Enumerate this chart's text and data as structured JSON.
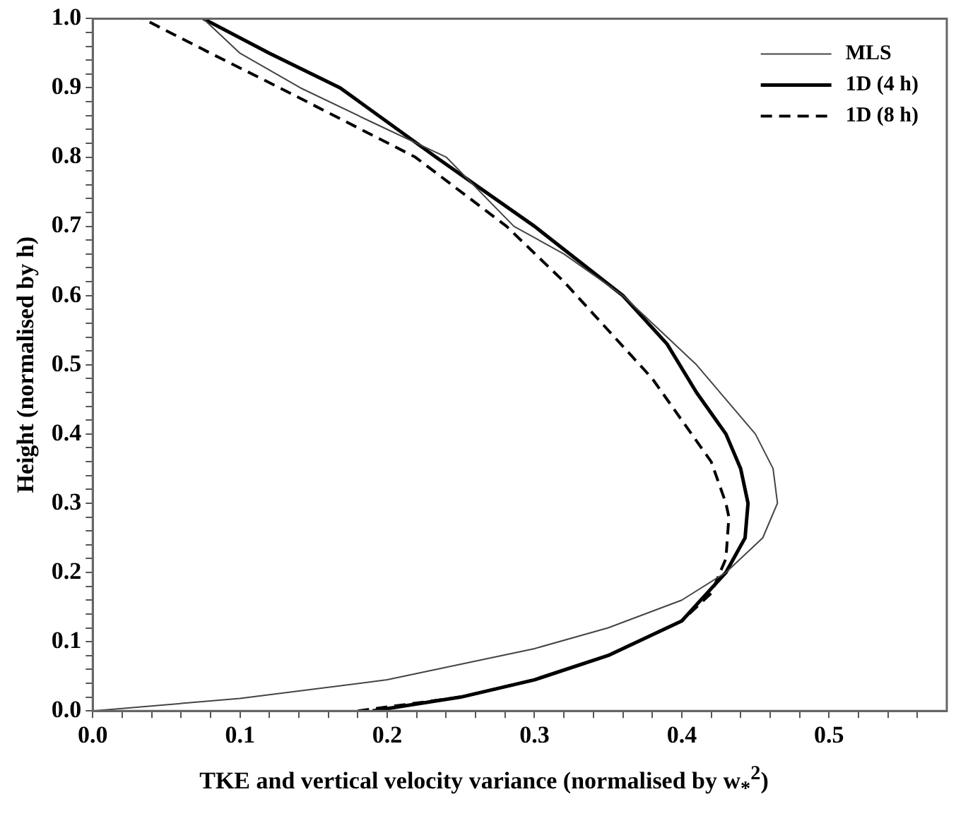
{
  "chart_data": {
    "type": "line",
    "xlabel": "TKE and vertical velocity variance (normalised by w$_{*}$$^{2}$)",
    "ylabel": "Height (normalised by h)",
    "xlim": [
      0,
      0.58
    ],
    "ylim": [
      0,
      1
    ],
    "xticks": [
      {
        "value": 0,
        "label": "0.0"
      },
      {
        "value": 0.02,
        "label": null
      },
      {
        "value": 0.04,
        "label": null
      },
      {
        "value": 0.06,
        "label": null
      },
      {
        "value": 0.08,
        "label": null
      },
      0.1,
      {
        "value": 0.12,
        "label": null
      },
      {
        "value": 0.14,
        "label": null
      },
      {
        "value": 0.16,
        "label": null
      },
      {
        "value": 0.18,
        "label": null
      },
      0.2,
      {
        "value": 0.22,
        "label": null
      },
      {
        "value": 0.24,
        "label": null
      },
      {
        "value": 0.26,
        "label": null
      },
      {
        "value": 0.28,
        "label": null
      },
      0.3,
      {
        "value": 0.32,
        "label": null
      },
      {
        "value": 0.34,
        "label": null
      },
      {
        "value": 0.36,
        "label": null
      },
      {
        "value": 0.38,
        "label": null
      },
      0.4,
      {
        "value": 0.42,
        "label": null
      },
      {
        "value": 0.44,
        "label": null
      },
      {
        "value": 0.46,
        "label": null
      },
      {
        "value": 0.48,
        "label": null
      },
      0.5,
      {
        "value": 0.52,
        "label": null
      },
      {
        "value": 0.54,
        "label": null
      },
      {
        "value": 0.56,
        "label": null
      }
    ],
    "yticks": [
      {
        "value": 0,
        "label": "0.0"
      },
      {
        "value": 0.02,
        "label": null
      },
      {
        "value": 0.04,
        "label": null
      },
      {
        "value": 0.06,
        "label": null
      },
      {
        "value": 0.08,
        "label": null
      },
      0.1,
      {
        "value": 0.12,
        "label": null
      },
      {
        "value": 0.14,
        "label": null
      },
      {
        "value": 0.16,
        "label": null
      },
      {
        "value": 0.18,
        "label": null
      },
      0.2,
      {
        "value": 0.22,
        "label": null
      },
      {
        "value": 0.24,
        "label": null
      },
      {
        "value": 0.26,
        "label": null
      },
      {
        "value": 0.28,
        "label": null
      },
      0.3,
      {
        "value": 0.32,
        "label": null
      },
      {
        "value": 0.34,
        "label": null
      },
      {
        "value": 0.36,
        "label": null
      },
      {
        "value": 0.38,
        "label": null
      },
      0.4,
      {
        "value": 0.42,
        "label": null
      },
      {
        "value": 0.44,
        "label": null
      },
      {
        "value": 0.46,
        "label": null
      },
      {
        "value": 0.48,
        "label": null
      },
      0.5,
      {
        "value": 0.52,
        "label": null
      },
      {
        "value": 0.54,
        "label": null
      },
      {
        "value": 0.56,
        "label": null
      },
      {
        "value": 0.58,
        "label": null
      },
      0.6,
      {
        "value": 0.62,
        "label": null
      },
      {
        "value": 0.64,
        "label": null
      },
      {
        "value": 0.66,
        "label": null
      },
      {
        "value": 0.68,
        "label": null
      },
      0.7,
      {
        "value": 0.72,
        "label": null
      },
      {
        "value": 0.74,
        "label": null
      },
      {
        "value": 0.76,
        "label": null
      },
      {
        "value": 0.78,
        "label": null
      },
      0.8,
      {
        "value": 0.82,
        "label": null
      },
      {
        "value": 0.84,
        "label": null
      },
      {
        "value": 0.86,
        "label": null
      },
      {
        "value": 0.88,
        "label": null
      },
      0.9,
      {
        "value": 0.92,
        "label": null
      },
      {
        "value": 0.94,
        "label": null
      },
      {
        "value": 0.96,
        "label": null
      },
      {
        "value": 0.98,
        "label": null
      },
      {
        "value": 1,
        "label": "1.0"
      }
    ],
    "grid": false,
    "legend": "top right",
    "marker": "none",
    "series": [
      {
        "name": "MLS",
        "color": "#444444",
        "line_style": "solid",
        "x": [
          0.0,
          0.1,
          0.2,
          0.3,
          0.35,
          0.4,
          0.43,
          0.455,
          0.465,
          0.462,
          0.45,
          0.43,
          0.41,
          0.39,
          0.36,
          0.32,
          0.286,
          0.24,
          0.19,
          0.141,
          0.1,
          0.075
        ],
        "values": [
          0.0,
          0.018,
          0.045,
          0.09,
          0.12,
          0.16,
          0.2,
          0.25,
          0.3,
          0.35,
          0.4,
          0.45,
          0.5,
          0.54,
          0.6,
          0.66,
          0.7,
          0.8,
          0.85,
          0.9,
          0.95,
          1.0
        ]
      },
      {
        "name": "1D (4 h)",
        "color": "#000000",
        "line_style": "solid",
        "x": [
          0.19,
          0.25,
          0.3,
          0.35,
          0.4,
          0.43,
          0.443,
          0.445,
          0.44,
          0.43,
          0.41,
          0.39,
          0.36,
          0.33,
          0.3,
          0.233,
          0.168,
          0.12,
          0.075
        ],
        "values": [
          0.0,
          0.02,
          0.045,
          0.08,
          0.13,
          0.2,
          0.25,
          0.3,
          0.35,
          0.4,
          0.46,
          0.53,
          0.6,
          0.65,
          0.7,
          0.8,
          0.9,
          0.95,
          1.0
        ]
      },
      {
        "name": "1D (8 h)",
        "color": "#000000",
        "line_style": "dashed",
        "x": [
          0.18,
          0.25,
          0.3,
          0.35,
          0.4,
          0.42,
          0.43,
          0.432,
          0.43,
          0.42,
          0.4,
          0.38,
          0.35,
          0.32,
          0.281,
          0.219,
          0.127,
          0.08,
          0.034
        ],
        "values": [
          0.0,
          0.02,
          0.045,
          0.08,
          0.13,
          0.17,
          0.22,
          0.28,
          0.3,
          0.36,
          0.42,
          0.48,
          0.55,
          0.62,
          0.7,
          0.8,
          0.9,
          0.95,
          1.0
        ]
      }
    ]
  }
}
